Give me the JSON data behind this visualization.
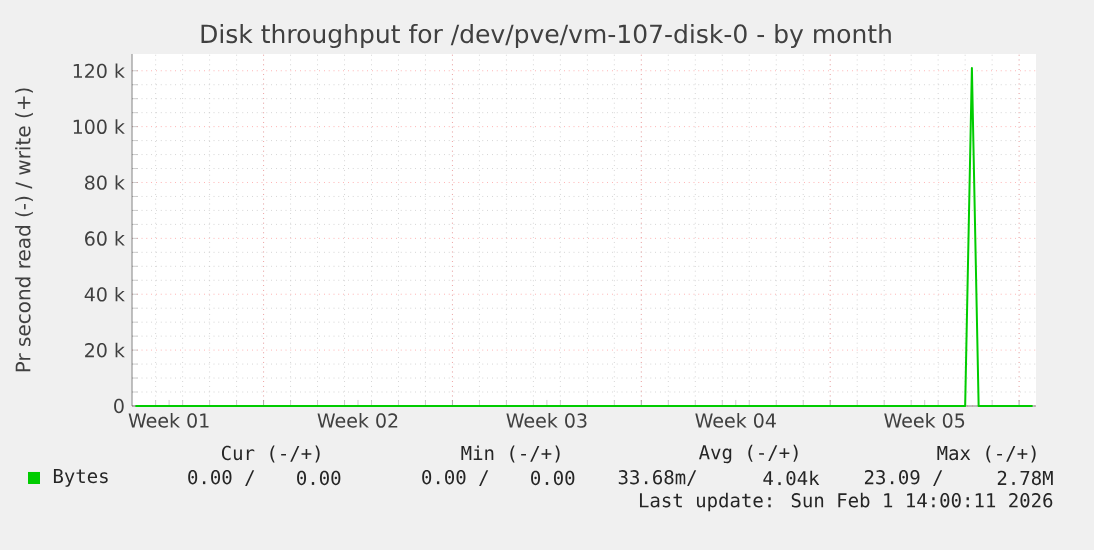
{
  "chart_data": {
    "type": "line",
    "title": "Disk throughput for /dev/pve/vm-107-disk-0 - by month",
    "ylabel": "Pr second read (-) / write (+)",
    "categories": [
      null,
      null,
      null,
      null,
      null,
      "Week 01",
      null,
      null,
      null,
      null,
      null,
      null,
      null,
      null,
      null,
      null,
      null,
      null,
      null,
      null,
      null,
      null,
      null,
      null,
      null,
      null,
      null,
      null,
      null,
      null,
      null,
      null,
      null,
      "Week 02",
      null,
      null,
      null,
      null,
      null,
      null,
      null,
      null,
      null,
      null,
      null,
      null,
      null,
      null,
      null,
      null,
      null,
      null,
      null,
      null,
      null,
      null,
      null,
      null,
      null,
      null,
      null,
      "Week 03",
      null,
      null,
      null,
      null,
      null,
      null,
      null,
      null,
      null,
      null,
      null,
      null,
      null,
      null,
      null,
      null,
      null,
      null,
      null,
      null,
      null,
      null,
      null,
      null,
      null,
      null,
      null,
      "Week 04",
      null,
      null,
      null,
      null,
      null,
      null,
      null,
      null,
      null,
      null,
      null,
      null,
      null,
      null,
      null,
      null,
      null,
      null,
      null,
      null,
      null,
      null,
      null,
      null,
      null,
      null,
      null,
      "Week 05",
      null,
      null,
      null,
      null,
      null,
      null,
      null,
      null,
      null,
      null,
      null,
      null,
      null,
      null,
      null,
      null
    ],
    "ylim": [
      0,
      126000
    ],
    "yticks": [
      0,
      {
        "value": 20000,
        "label": "20 k"
      },
      {
        "value": 40000,
        "label": "40 k"
      },
      {
        "value": 60000,
        "label": "60 k"
      },
      {
        "value": 80000,
        "label": "80 k"
      },
      {
        "value": 100000,
        "label": "100 k"
      },
      {
        "value": 120000,
        "label": "120 k"
      }
    ],
    "series": [
      {
        "name": "Bytes",
        "color": "#00cc00",
        "values": [
          0,
          0,
          0,
          0,
          0,
          0,
          0,
          0,
          0,
          0,
          0,
          0,
          0,
          0,
          0,
          0,
          0,
          0,
          0,
          0,
          0,
          0,
          0,
          0,
          0,
          0,
          0,
          0,
          0,
          0,
          0,
          0,
          0,
          0,
          0,
          0,
          0,
          0,
          0,
          0,
          0,
          0,
          0,
          0,
          0,
          0,
          0,
          0,
          0,
          0,
          0,
          0,
          0,
          0,
          0,
          0,
          0,
          0,
          0,
          0,
          0,
          0,
          0,
          0,
          0,
          0,
          0,
          0,
          0,
          0,
          0,
          0,
          0,
          0,
          0,
          0,
          0,
          0,
          0,
          0,
          0,
          0,
          0,
          0,
          0,
          0,
          0,
          0,
          0,
          0,
          0,
          0,
          0,
          0,
          0,
          0,
          0,
          0,
          0,
          0,
          0,
          0,
          0,
          0,
          0,
          0,
          0,
          0,
          0,
          0,
          0,
          0,
          0,
          0,
          0,
          0,
          0,
          0,
          0,
          0,
          0,
          0,
          0,
          0,
          121000,
          0,
          0,
          0,
          0,
          0,
          0,
          0,
          0,
          0
        ]
      }
    ],
    "grid": true,
    "legend": "bottom left",
    "marker": "none",
    "annotations": [
      "Cur (-/+)",
      "Min (-/+)",
      "Avg (-/+)",
      "Max (-/+)",
      "0.00 /",
      "0.00",
      "0.00 /",
      "0.00",
      "33.68m/",
      "4.04k",
      "23.09 /",
      "2.78M",
      "Last update: Sun Feb 1 14:00:11 2026"
    ]
  }
}
